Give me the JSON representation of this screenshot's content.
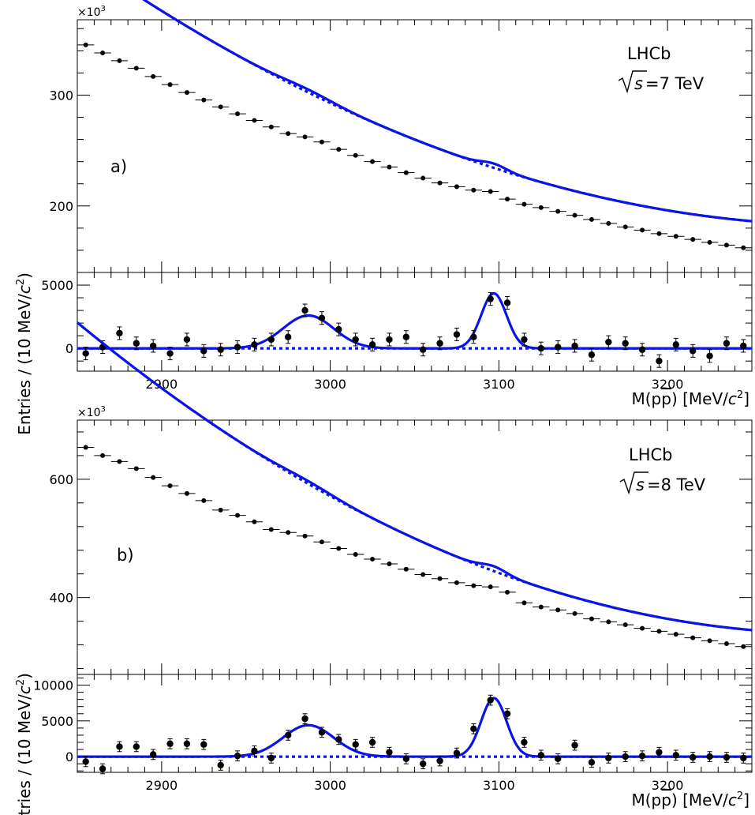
{
  "chart_data": [
    {
      "type": "scatter",
      "panel": "a-main",
      "tag": "a)",
      "experiment": "LHCb",
      "energy_label": "=7 TeV",
      "multiplier": "×10",
      "multiplier_exp": "3",
      "ylabel": "Entries / (10 MeV/",
      "ylabel_unit": "c",
      "ylabel_exp": "2",
      "ylabel_end": ")",
      "xlim": [
        2850,
        3250
      ],
      "ylim": [
        140,
        368
      ],
      "yticks": [
        200,
        300
      ],
      "fit_curve": true,
      "background_curve": true,
      "peaks": [
        {
          "x": 3097,
          "height": 3.9,
          "width": 7.5
        },
        {
          "x": 2987,
          "height": 2.6,
          "width": 15
        }
      ],
      "bkg_a": 260,
      "bkg_b": -240,
      "bkg_c": 185,
      "x": [
        2855,
        2865,
        2875,
        2885,
        2895,
        2905,
        2915,
        2925,
        2935,
        2945,
        2955,
        2965,
        2975,
        2985,
        2995,
        3005,
        3015,
        3025,
        3035,
        3045,
        3055,
        3065,
        3075,
        3085,
        3095,
        3105,
        3115,
        3125,
        3135,
        3145,
        3155,
        3165,
        3175,
        3185,
        3195,
        3205,
        3215,
        3225,
        3235,
        3245
      ],
      "y": [
        345.3,
        338.1,
        331.0,
        324.3,
        316.8,
        309.5,
        302.4,
        295.6,
        289.4,
        283.1,
        277.2,
        271.3,
        265.3,
        262.3,
        257.7,
        251.1,
        245.6,
        240.0,
        235.1,
        230.0,
        225.1,
        220.8,
        217.4,
        214.3,
        213.0,
        206.2,
        201.5,
        198.5,
        195.1,
        191.6,
        187.8,
        184.3,
        181.1,
        178.2,
        175.0,
        172.6,
        169.8,
        167.2,
        164.7,
        162.3
      ]
    },
    {
      "type": "scatter",
      "panel": "a-residual",
      "xlim": [
        2850,
        3250
      ],
      "ylim": [
        -1800,
        6000
      ],
      "yticks": [
        0,
        5000
      ],
      "xticks": [
        2900,
        3000,
        3100,
        3200
      ],
      "xlabel": "M(p",
      "xlabel_bar": "p",
      "xlabel_end": ")  [MeV/",
      "xlabel_unit": "c",
      "xlabel_exp": "2",
      "xlabel_close": "]",
      "peaks": [
        {
          "x": 3097,
          "height": 4350,
          "width": 7.5
        },
        {
          "x": 2987,
          "height": 2600,
          "width": 15
        }
      ],
      "x": [
        2855,
        2865,
        2875,
        2885,
        2895,
        2905,
        2915,
        2925,
        2935,
        2945,
        2955,
        2965,
        2975,
        2985,
        2995,
        3005,
        3015,
        3025,
        3035,
        3045,
        3055,
        3065,
        3075,
        3085,
        3095,
        3105,
        3115,
        3125,
        3135,
        3145,
        3155,
        3165,
        3175,
        3185,
        3195,
        3205,
        3215,
        3225,
        3235,
        3245
      ],
      "y": [
        -400,
        100,
        1200,
        400,
        200,
        -400,
        700,
        -200,
        -100,
        100,
        300,
        700,
        900,
        3000,
        2400,
        1500,
        700,
        300,
        700,
        900,
        -100,
        400,
        1100,
        900,
        3900,
        3600,
        700,
        0,
        100,
        200,
        -500,
        500,
        400,
        -100,
        -1000,
        300,
        -200,
        -600,
        400,
        200
      ],
      "yerr": [
        500,
        500,
        500,
        500,
        500,
        500,
        500,
        500,
        500,
        500,
        500,
        500,
        500,
        500,
        500,
        500,
        500,
        500,
        500,
        500,
        500,
        500,
        500,
        500,
        500,
        500,
        500,
        500,
        500,
        500,
        500,
        500,
        500,
        500,
        500,
        500,
        500,
        500,
        500,
        500
      ]
    },
    {
      "type": "scatter",
      "panel": "b-main",
      "tag": "b)",
      "experiment": "LHCb",
      "energy_label": "=8 TeV",
      "multiplier": "×10",
      "multiplier_exp": "3",
      "ylabel": "Entries / (10 MeV/",
      "ylabel_unit": "c",
      "ylabel_exp": "2",
      "ylabel_end": ")",
      "xlim": [
        2850,
        3250
      ],
      "ylim": [
        270,
        700
      ],
      "yticks": [
        400,
        600
      ],
      "fit_curve": true,
      "background_curve": true,
      "peaks": [
        {
          "x": 3097,
          "height": 8.2,
          "width": 7.5
        },
        {
          "x": 2987,
          "height": 4.5,
          "width": 15
        }
      ],
      "bkg_a": 500,
      "bkg_b": -520,
      "bkg_c": 420,
      "x": [
        2855,
        2865,
        2875,
        2885,
        2895,
        2905,
        2915,
        2925,
        2935,
        2945,
        2955,
        2965,
        2975,
        2985,
        2995,
        3005,
        3015,
        3025,
        3035,
        3045,
        3055,
        3065,
        3075,
        3085,
        3095,
        3105,
        3115,
        3125,
        3135,
        3145,
        3155,
        3165,
        3175,
        3185,
        3195,
        3205,
        3215,
        3225,
        3235,
        3245
      ],
      "y": [
        654,
        640,
        630,
        618,
        603,
        589,
        576,
        564,
        548,
        539,
        528,
        515,
        510,
        504,
        494,
        483,
        473,
        465,
        457,
        448,
        439,
        432,
        425,
        420,
        418,
        409,
        391,
        384,
        379,
        373,
        364,
        359,
        354,
        348,
        343,
        338,
        332,
        327,
        322,
        317
      ]
    },
    {
      "type": "scatter",
      "panel": "b-residual",
      "xlim": [
        2850,
        3250
      ],
      "ylim": [
        -2200,
        11500
      ],
      "yticks": [
        0,
        5000,
        10000
      ],
      "xticks": [
        2900,
        3000,
        3100,
        3200
      ],
      "xlabel": "M(p",
      "xlabel_bar": "p",
      "xlabel_end": ")  [MeV/",
      "xlabel_unit": "c",
      "xlabel_exp": "2",
      "xlabel_close": "]",
      "peaks": [
        {
          "x": 3097,
          "height": 8200,
          "width": 7.5
        },
        {
          "x": 2987,
          "height": 4400,
          "width": 15
        }
      ],
      "x": [
        2855,
        2865,
        2875,
        2885,
        2895,
        2905,
        2915,
        2925,
        2935,
        2945,
        2955,
        2965,
        2975,
        2985,
        2995,
        3005,
        3015,
        3025,
        3035,
        3045,
        3055,
        3065,
        3075,
        3085,
        3095,
        3105,
        3115,
        3125,
        3135,
        3145,
        3155,
        3165,
        3175,
        3185,
        3195,
        3205,
        3215,
        3225,
        3235,
        3245
      ],
      "y": [
        -700,
        -1700,
        1400,
        1400,
        300,
        1800,
        1800,
        1700,
        -1200,
        100,
        800,
        -200,
        3000,
        5300,
        3400,
        2400,
        1700,
        2000,
        600,
        -300,
        -1000,
        -600,
        500,
        3900,
        7900,
        6000,
        2000,
        200,
        -300,
        1600,
        -800,
        -200,
        0,
        100,
        600,
        200,
        -100,
        0,
        -100,
        -200
      ],
      "yerr": [
        700,
        700,
        700,
        700,
        700,
        700,
        700,
        700,
        700,
        700,
        700,
        700,
        700,
        700,
        700,
        700,
        700,
        700,
        700,
        700,
        700,
        700,
        700,
        700,
        700,
        700,
        700,
        700,
        700,
        700,
        700,
        700,
        700,
        700,
        700,
        700,
        700,
        700,
        700,
        700
      ]
    }
  ]
}
